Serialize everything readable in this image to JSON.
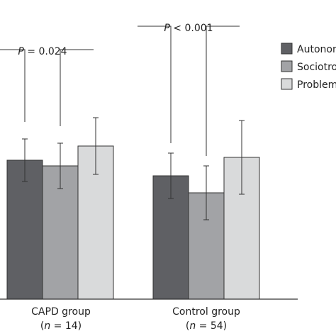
{
  "chart_data": {
    "type": "bar",
    "categories": [
      {
        "label": "CAPD group",
        "n_prefix": "(",
        "n_var": "n",
        "n_text": " = 14)"
      },
      {
        "label": "Control group",
        "n_prefix": "(",
        "n_var": "n",
        "n_text": " = 54)"
      }
    ],
    "series": [
      {
        "name": "Autonomous",
        "color": "#5f6064",
        "values": [
          4.9,
          4.35
        ],
        "errors": [
          0.75,
          0.8
        ]
      },
      {
        "name": "Sociotropic",
        "color": "#a2a3a6",
        "values": [
          4.7,
          3.75
        ],
        "errors": [
          0.8,
          0.95
        ]
      },
      {
        "name": "Problem",
        "color": "#d9dadb",
        "values": [
          5.4,
          5.0
        ],
        "errors": [
          1.0,
          1.3
        ]
      }
    ],
    "ylim": [
      0,
      8
    ],
    "grid": false,
    "legend_position": "top-right",
    "annotations": [
      {
        "italic": "P",
        "text": " = 0.024",
        "from_bar": [
          0,
          0
        ],
        "to_bar": [
          1,
          0
        ]
      },
      {
        "italic": "P",
        "text": " < 0.001",
        "from_bar": [
          0,
          1
        ],
        "to_bar": [
          1,
          1
        ]
      }
    ]
  }
}
